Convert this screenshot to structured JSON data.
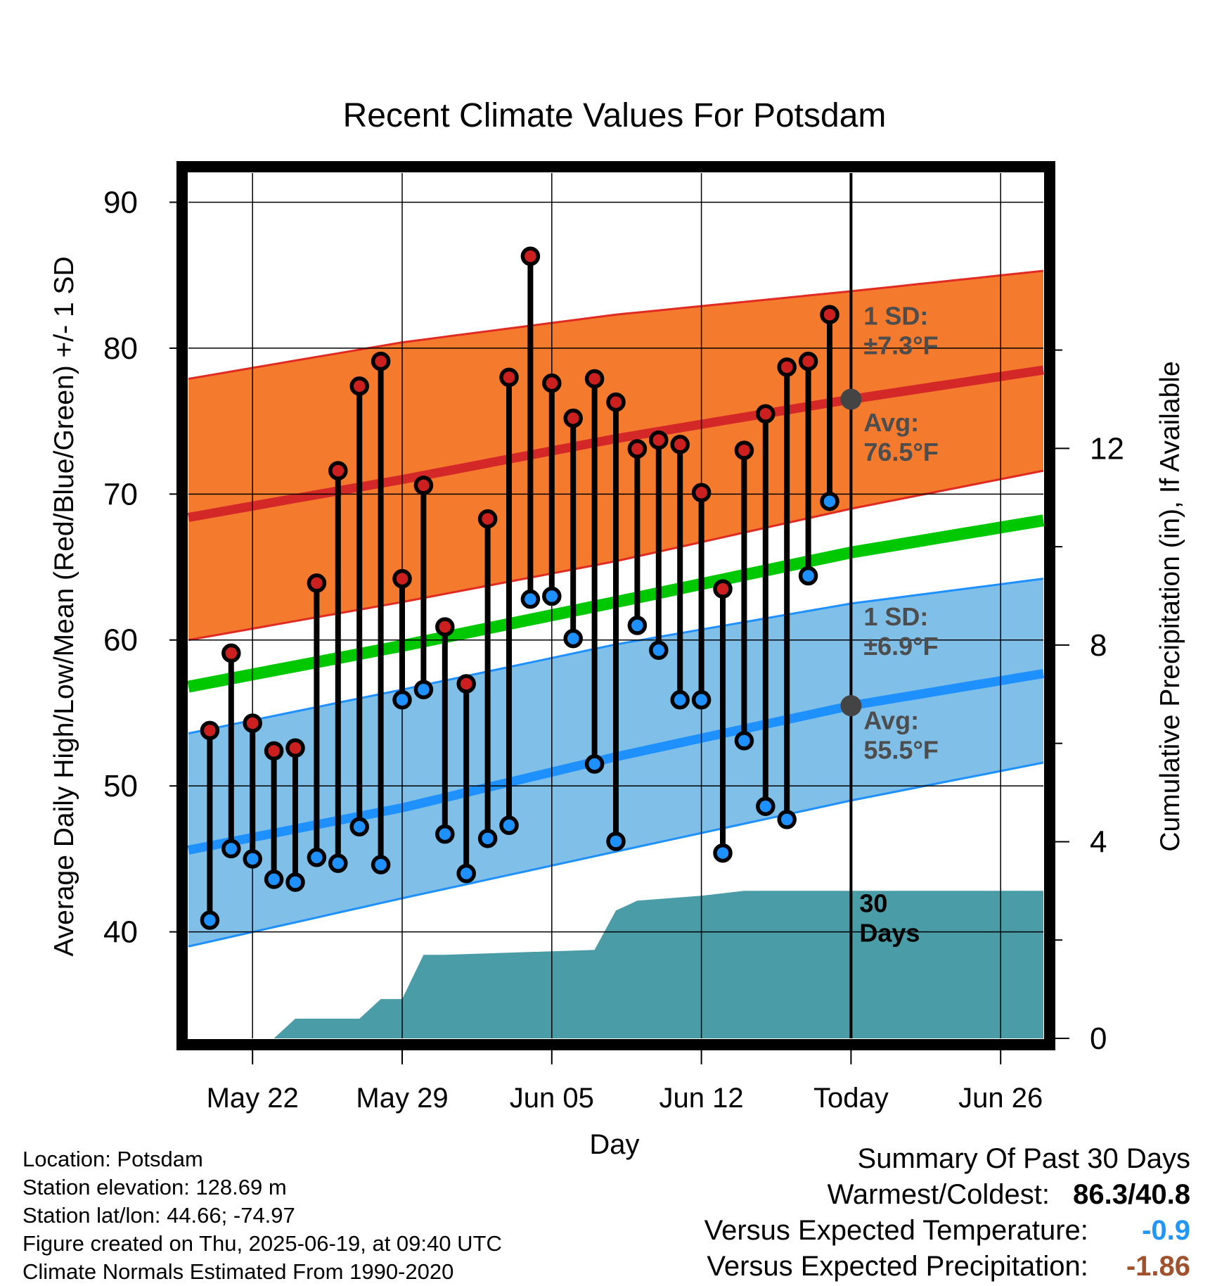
{
  "chart_data": {
    "type": "line",
    "title": "Recent Climate Values For Potsdam",
    "xlabel": "Day",
    "ylabel": "Average Daily High/Low/Mean (Red/Blue/Green) +/- 1 SD",
    "y2label": "Cumulative Precipitation (in), If Available",
    "ylim": [
      32.7,
      92
    ],
    "y_ticks": [
      "40",
      "50",
      "60",
      "70",
      "80",
      "90"
    ],
    "y2lim": [
      0,
      17.6
    ],
    "y2_ticks": [
      "0",
      "4",
      "8",
      "12"
    ],
    "x_domain": [
      "2025-05-19",
      "2025-06-28"
    ],
    "x_ticks": [
      {
        "date": "2025-05-22",
        "label": "May 22"
      },
      {
        "date": "2025-05-29",
        "label": "May 29"
      },
      {
        "date": "2025-06-05",
        "label": "Jun 05"
      },
      {
        "date": "2025-06-12",
        "label": "Jun 12"
      },
      {
        "date": "2025-06-19",
        "label": "Today"
      },
      {
        "date": "2025-06-26",
        "label": "Jun 26"
      }
    ],
    "grid": true,
    "today": "2025-06-19",
    "period_label": "30\nDays",
    "normals": {
      "dates": [
        "2025-05-19",
        "2025-05-29",
        "2025-06-08",
        "2025-06-19",
        "2025-06-28"
      ],
      "high_upper": [
        77.9,
        80.4,
        82.3,
        83.9,
        85.3
      ],
      "high_mean": [
        68.4,
        71.0,
        73.8,
        76.5,
        78.5
      ],
      "high_lower": [
        60.0,
        62.6,
        65.4,
        69.0,
        71.6
      ],
      "mean": [
        56.8,
        59.6,
        62.6,
        66.0,
        68.2
      ],
      "low_upper": [
        53.6,
        56.6,
        59.7,
        62.5,
        64.2
      ],
      "low_mean": [
        45.6,
        48.5,
        52.0,
        55.5,
        57.7
      ],
      "low_lower": [
        39.0,
        42.3,
        45.5,
        49.0,
        51.6
      ]
    },
    "annotations": [
      {
        "text": "1 SD:",
        "text2": "±7.3°F"
      },
      {
        "text": "Avg:",
        "text2": "76.5°F"
      },
      {
        "text": "1 SD:",
        "text2": "±6.9°F"
      },
      {
        "text": "Avg:",
        "text2": "55.5°F"
      }
    ],
    "today_markers": [
      76.5,
      55.5
    ],
    "observations": {
      "dates": [
        "2025-05-20",
        "2025-05-21",
        "2025-05-22",
        "2025-05-23",
        "2025-05-24",
        "2025-05-25",
        "2025-05-26",
        "2025-05-27",
        "2025-05-28",
        "2025-05-29",
        "2025-05-30",
        "2025-05-31",
        "2025-06-01",
        "2025-06-02",
        "2025-06-03",
        "2025-06-04",
        "2025-06-05",
        "2025-06-06",
        "2025-06-07",
        "2025-06-08",
        "2025-06-09",
        "2025-06-10",
        "2025-06-11",
        "2025-06-12",
        "2025-06-13",
        "2025-06-14",
        "2025-06-15",
        "2025-06-16",
        "2025-06-17",
        "2025-06-18"
      ],
      "high": [
        53.8,
        59.1,
        54.3,
        52.4,
        52.6,
        63.9,
        71.6,
        77.4,
        79.1,
        64.2,
        70.6,
        60.9,
        57.0,
        68.3,
        78.0,
        86.3,
        77.6,
        75.2,
        77.9,
        76.3,
        73.1,
        73.7,
        73.4,
        70.1,
        63.5,
        73.0,
        75.5,
        78.7,
        79.1,
        82.3
      ],
      "low": [
        40.8,
        45.7,
        45.0,
        43.6,
        43.4,
        45.1,
        44.7,
        47.2,
        44.6,
        55.9,
        56.6,
        46.7,
        44.0,
        46.4,
        47.3,
        62.8,
        63.0,
        60.1,
        51.5,
        46.2,
        61.0,
        59.3,
        55.9,
        55.9,
        45.4,
        53.1,
        48.6,
        47.7,
        64.4,
        69.5
      ]
    },
    "precipitation": {
      "dates": [
        "2025-05-19",
        "2025-05-22",
        "2025-05-23",
        "2025-05-24",
        "2025-05-27",
        "2025-05-28",
        "2025-05-29",
        "2025-05-30",
        "2025-05-31",
        "2025-06-07",
        "2025-06-08",
        "2025-06-09",
        "2025-06-12",
        "2025-06-14",
        "2025-06-28"
      ],
      "values": [
        0.0,
        0.0,
        0.0,
        0.4,
        0.4,
        0.8,
        0.8,
        1.7,
        1.7,
        1.8,
        2.6,
        2.8,
        2.9,
        3.0,
        3.0
      ]
    },
    "colors": {
      "high_band": "#f47a2e",
      "high_mean": "#d42828",
      "high_edge": "#e02b22",
      "mean": "#00c800",
      "low_band": "#80c0e8",
      "low_mean": "#1e90ff",
      "low_edge": "#1e90ff",
      "precip": "#4a9ca6",
      "high_dot": "#cc2020",
      "low_dot": "#1e90ff",
      "marker": "#444444",
      "annotation": "#4d4d4d",
      "temp_anomaly": "#2196f3",
      "precip_anomaly": "#a0522d"
    }
  },
  "footer": {
    "location": "Location: Potsdam",
    "elevation": "Station elevation: 128.69 m",
    "latlon": "Station lat/lon: 44.66; -74.97",
    "created": "Figure created on Thu, 2025-06-19, at 09:40 UTC",
    "normals": "Climate Normals Estimated From 1990-2020"
  },
  "summary": {
    "title": "Summary Of Past 30 Days",
    "warmest_label": "Warmest/Coldest:",
    "warmest_value": "86.3",
    "coldest_value": "40.8",
    "temp_label": "Versus Expected Temperature:",
    "temp_value": "-0.9",
    "precip_label": "Versus Expected Precipitation:",
    "precip_value": "-1.86"
  }
}
